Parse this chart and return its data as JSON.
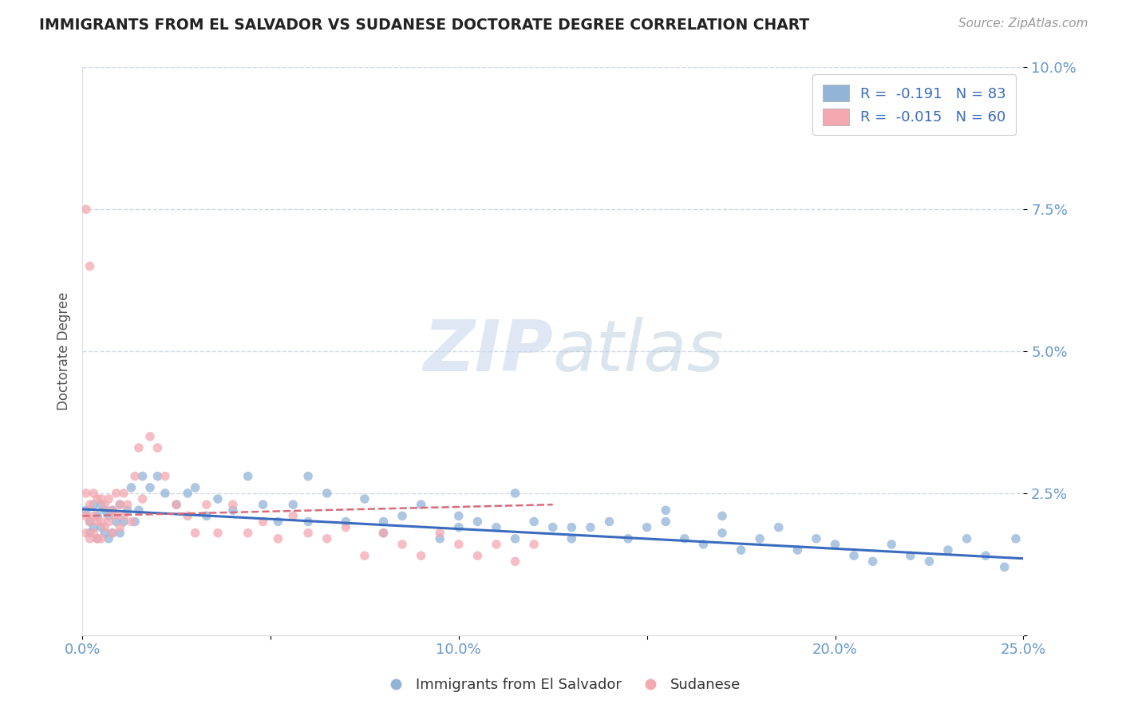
{
  "title": "IMMIGRANTS FROM EL SALVADOR VS SUDANESE DOCTORATE DEGREE CORRELATION CHART",
  "source": "Source: ZipAtlas.com",
  "ylabel": "Doctorate Degree",
  "watermark_zip": "ZIP",
  "watermark_atlas": "atlas",
  "legend_blue_r": "R =  -0.191",
  "legend_blue_n": "N = 83",
  "legend_pink_r": "R =  -0.015",
  "legend_pink_n": "N = 60",
  "legend_labels": [
    "Immigrants from El Salvador",
    "Sudanese"
  ],
  "xmin": 0.0,
  "xmax": 0.25,
  "ymin": 0.0,
  "ymax": 0.1,
  "yticks": [
    0.0,
    0.025,
    0.05,
    0.075,
    0.1
  ],
  "ytick_labels": [
    "",
    "2.5%",
    "5.0%",
    "7.5%",
    "10.0%"
  ],
  "xticks": [
    0.0,
    0.05,
    0.1,
    0.15,
    0.2,
    0.25
  ],
  "xtick_labels": [
    "0.0%",
    "",
    "10.0%",
    "",
    "20.0%",
    "25.0%"
  ],
  "blue_color": "#92b4d7",
  "pink_color": "#f4a8b0",
  "line_blue_color": "#3a6bbf",
  "line_pink_color": "#d96b7a",
  "axis_color": "#6699CC",
  "grid_color": "#d0d8e8",
  "background_color": "#FFFFFF",
  "blue_scatter_x": [
    0.001,
    0.002,
    0.002,
    0.003,
    0.003,
    0.004,
    0.004,
    0.005,
    0.005,
    0.006,
    0.006,
    0.007,
    0.007,
    0.008,
    0.008,
    0.009,
    0.01,
    0.01,
    0.011,
    0.012,
    0.013,
    0.014,
    0.015,
    0.016,
    0.018,
    0.02,
    0.022,
    0.025,
    0.028,
    0.03,
    0.033,
    0.036,
    0.04,
    0.044,
    0.048,
    0.052,
    0.056,
    0.06,
    0.065,
    0.07,
    0.075,
    0.08,
    0.085,
    0.09,
    0.095,
    0.1,
    0.105,
    0.11,
    0.115,
    0.12,
    0.125,
    0.13,
    0.135,
    0.14,
    0.145,
    0.15,
    0.155,
    0.16,
    0.165,
    0.17,
    0.175,
    0.18,
    0.185,
    0.19,
    0.195,
    0.2,
    0.205,
    0.21,
    0.215,
    0.22,
    0.225,
    0.23,
    0.235,
    0.24,
    0.245,
    0.248,
    0.06,
    0.115,
    0.155,
    0.13,
    0.08,
    0.1,
    0.17
  ],
  "blue_scatter_y": [
    0.022,
    0.02,
    0.018,
    0.023,
    0.019,
    0.021,
    0.017,
    0.023,
    0.019,
    0.022,
    0.018,
    0.021,
    0.017,
    0.022,
    0.018,
    0.02,
    0.023,
    0.018,
    0.02,
    0.022,
    0.026,
    0.02,
    0.022,
    0.028,
    0.026,
    0.028,
    0.025,
    0.023,
    0.025,
    0.026,
    0.021,
    0.024,
    0.022,
    0.028,
    0.023,
    0.02,
    0.023,
    0.02,
    0.025,
    0.02,
    0.024,
    0.02,
    0.021,
    0.023,
    0.017,
    0.019,
    0.02,
    0.019,
    0.017,
    0.02,
    0.019,
    0.017,
    0.019,
    0.02,
    0.017,
    0.019,
    0.02,
    0.017,
    0.016,
    0.018,
    0.015,
    0.017,
    0.019,
    0.015,
    0.017,
    0.016,
    0.014,
    0.013,
    0.016,
    0.014,
    0.013,
    0.015,
    0.017,
    0.014,
    0.012,
    0.017,
    0.028,
    0.025,
    0.022,
    0.019,
    0.018,
    0.021,
    0.021
  ],
  "pink_scatter_x": [
    0.001,
    0.001,
    0.001,
    0.002,
    0.002,
    0.002,
    0.003,
    0.003,
    0.003,
    0.004,
    0.004,
    0.004,
    0.005,
    0.005,
    0.005,
    0.006,
    0.006,
    0.007,
    0.007,
    0.008,
    0.008,
    0.009,
    0.009,
    0.01,
    0.01,
    0.011,
    0.011,
    0.012,
    0.013,
    0.014,
    0.015,
    0.016,
    0.018,
    0.02,
    0.022,
    0.025,
    0.028,
    0.03,
    0.033,
    0.036,
    0.04,
    0.044,
    0.048,
    0.052,
    0.056,
    0.06,
    0.065,
    0.07,
    0.075,
    0.08,
    0.085,
    0.09,
    0.095,
    0.1,
    0.105,
    0.11,
    0.115,
    0.12,
    0.001,
    0.002
  ],
  "pink_scatter_y": [
    0.025,
    0.021,
    0.018,
    0.023,
    0.02,
    0.017,
    0.025,
    0.021,
    0.018,
    0.024,
    0.02,
    0.017,
    0.024,
    0.02,
    0.017,
    0.023,
    0.019,
    0.024,
    0.02,
    0.022,
    0.018,
    0.025,
    0.021,
    0.023,
    0.019,
    0.025,
    0.021,
    0.023,
    0.02,
    0.028,
    0.033,
    0.024,
    0.035,
    0.033,
    0.028,
    0.023,
    0.021,
    0.018,
    0.023,
    0.018,
    0.023,
    0.018,
    0.02,
    0.017,
    0.021,
    0.018,
    0.017,
    0.019,
    0.014,
    0.018,
    0.016,
    0.014,
    0.018,
    0.016,
    0.014,
    0.016,
    0.013,
    0.016,
    0.075,
    0.065
  ],
  "blue_trend_x": [
    0.0,
    0.25
  ],
  "blue_trend_y": [
    0.0222,
    0.0135
  ],
  "pink_trend_x": [
    0.0,
    0.125
  ],
  "pink_trend_y": [
    0.021,
    0.023
  ]
}
